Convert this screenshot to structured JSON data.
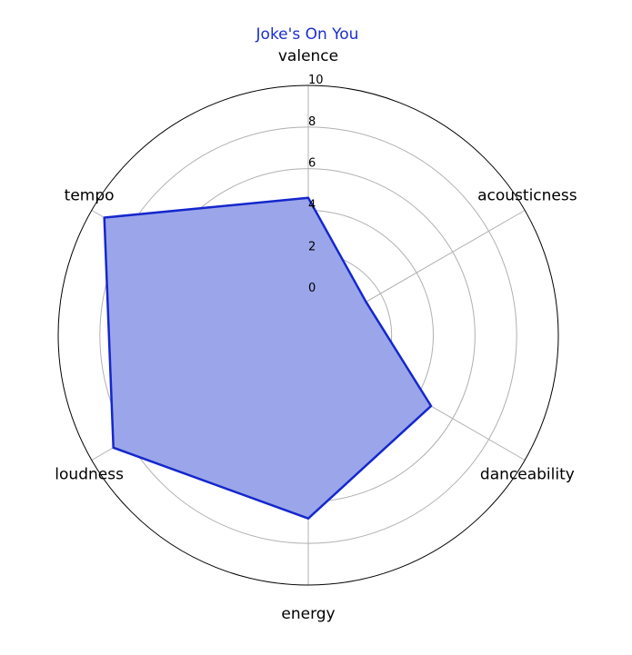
{
  "chart_data": {
    "type": "radar",
    "title": "Joke's On You",
    "axes": [
      "valence",
      "acousticness",
      "danceability",
      "energy",
      "loudness",
      "tempo"
    ],
    "series": [
      {
        "values": [
          4.6,
          1.2,
          4.8,
          6.8,
          8.8,
          9.3
        ]
      }
    ],
    "rlim": [
      -2,
      10
    ],
    "rticks": [
      0,
      2,
      4,
      6,
      8,
      10
    ],
    "grid": true,
    "colors": {
      "title": "#1a2fcf",
      "line": "#1527cc",
      "fill": "#9ba6ea",
      "grid": "#b0b0b0",
      "frame": "#000000"
    }
  }
}
